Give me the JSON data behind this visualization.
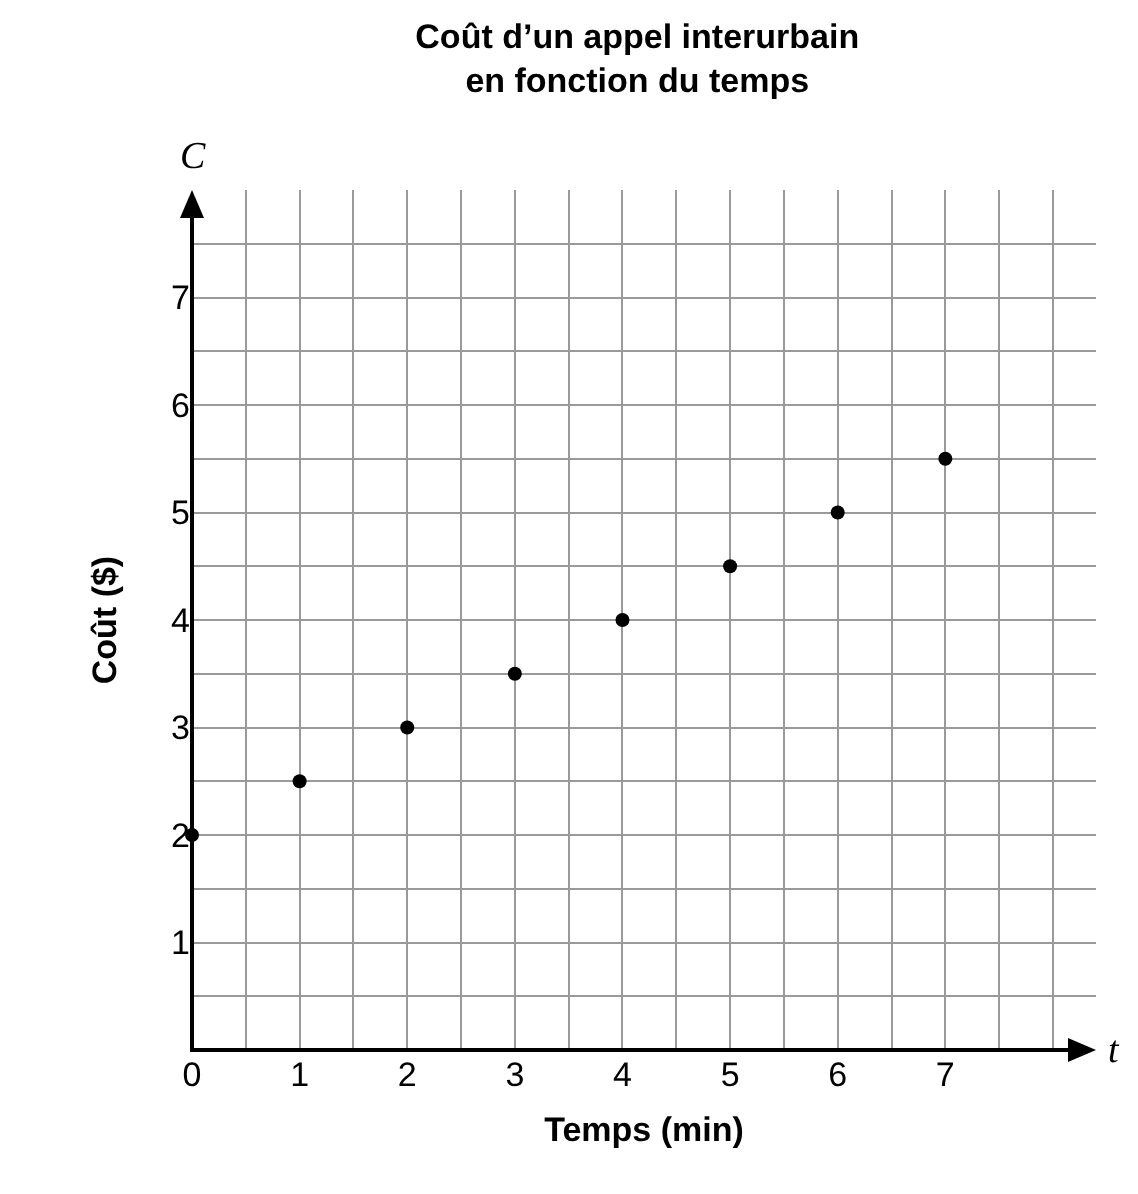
{
  "chart_data": {
    "type": "scatter",
    "title": "Coût d’un appel interurbain\nen fonction du temps",
    "xlabel": "Temps (min)",
    "ylabel": "Coût ($)",
    "annotations": [
      "C",
      "t"
    ],
    "x": [
      0,
      1,
      2,
      3,
      4,
      5,
      6,
      7
    ],
    "series": [
      {
        "color": "#000000",
        "values": [
          2,
          2.5,
          3,
          3.5,
          4,
          4.5,
          5,
          5.5
        ]
      }
    ],
    "xlim": [
      0,
      8.4
    ],
    "xticks": [
      0,
      {
        "value": 0.5,
        "label": null
      },
      1,
      {
        "value": 1.5,
        "label": null
      },
      2,
      {
        "value": 2.5,
        "label": null
      },
      3,
      {
        "value": 3.5,
        "label": null
      },
      4,
      {
        "value": 4.5,
        "label": null
      },
      5,
      {
        "value": 5.5,
        "label": null
      },
      6,
      {
        "value": 6.5,
        "label": null
      },
      7,
      {
        "value": 7.5,
        "label": null
      },
      {
        "value": 8,
        "label": null
      }
    ],
    "ylim": [
      0,
      8
    ],
    "yticks": [
      {
        "value": 0.5,
        "label": null
      },
      1,
      {
        "value": 1.5,
        "label": null
      },
      2,
      {
        "value": 2.5,
        "label": null
      },
      3,
      {
        "value": 3.5,
        "label": null
      },
      4,
      {
        "value": 4.5,
        "label": null
      },
      5,
      {
        "value": 5.5,
        "label": null
      },
      6,
      {
        "value": 6.5,
        "label": null
      },
      7,
      {
        "value": 7.5,
        "label": null
      }
    ],
    "grid": true,
    "marker": "circle"
  }
}
